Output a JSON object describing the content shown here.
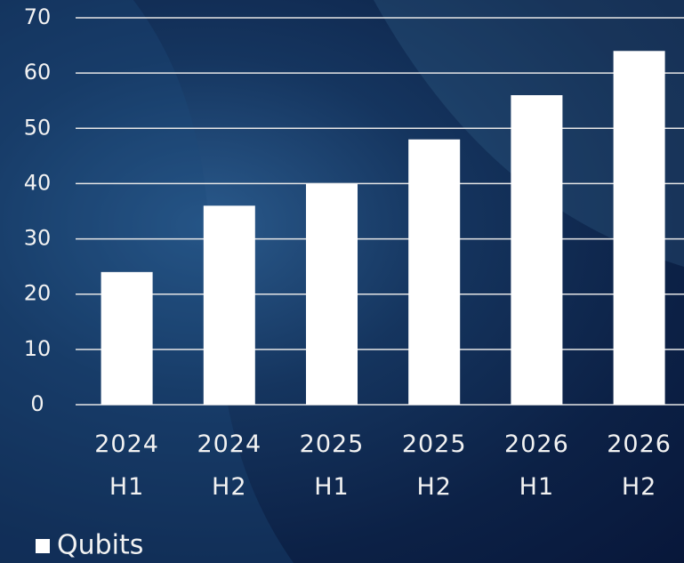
{
  "chart_data": {
    "type": "bar",
    "categories": [
      "2024\nH1",
      "2024\nH2",
      "2025\nH1",
      "2025\nH2",
      "2026\nH1",
      "2026\nH2"
    ],
    "series": [
      {
        "name": "Qubits",
        "color": "#ffffff",
        "values": [
          24,
          36,
          40,
          48,
          56,
          64
        ]
      }
    ],
    "ylim": [
      0,
      70
    ],
    "yticks": [
      0,
      10,
      20,
      30,
      40,
      50,
      60,
      70
    ],
    "grid": true,
    "legend": "bottom-left"
  }
}
